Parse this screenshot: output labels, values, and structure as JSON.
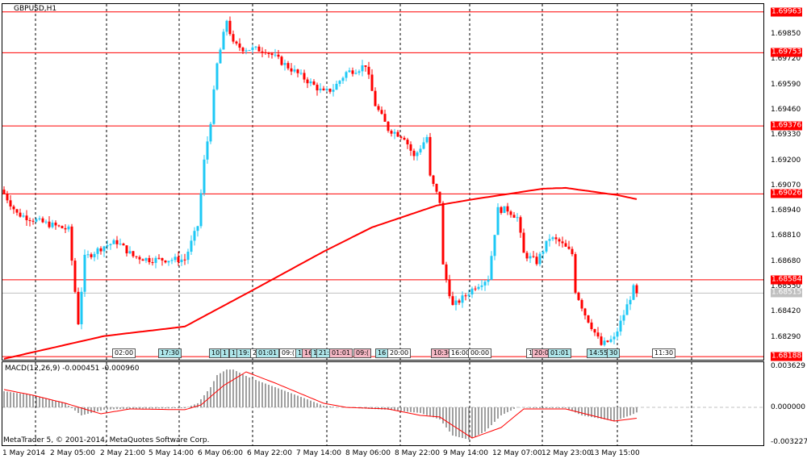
{
  "symbol_label": "GBPUSD,H1",
  "macd_label": "MACD(12,26,9) -0.000451 -0.000960",
  "copyright": "MetaTrader 5, © 2001-2014, MetaQuotes Software Corp.",
  "colors": {
    "bull": "#1ec8f5",
    "bear": "#ff0000",
    "ma": "#ff0000",
    "level": "#ff0000",
    "grid": "#000000",
    "hist": "#808080"
  },
  "price_axis": [
    "1.69850",
    "1.69720",
    "1.69590",
    "1.69460",
    "1.69330",
    "1.69200",
    "1.69070",
    "1.68940",
    "1.68810",
    "1.68680",
    "1.68550",
    "1.68420",
    "1.68290"
  ],
  "level_tags": [
    "1.69963",
    "1.69753",
    "1.69376",
    "1.69026",
    "1.68584",
    "1.68188"
  ],
  "bid_tag": "1.68515",
  "macd_axis": [
    "0.003629",
    "0.000000",
    "-0.003227"
  ],
  "time_axis": [
    "1 May 2014",
    "2 May 05:00",
    "2 May 21:00",
    "5 May 14:00",
    "6 May 06:00",
    "6 May 22:00",
    "7 May 14:00",
    "8 May 06:00",
    "8 May 22:00",
    "9 May 14:00",
    "12 May 07:00",
    "12 May 23:00",
    "13 May 15:00"
  ],
  "events": [
    {
      "t": "02:00",
      "c": "white"
    },
    {
      "t": "17:30",
      "c": "cyan"
    },
    {
      "t": "10:",
      "c": "cyan"
    },
    {
      "t": "1",
      "c": "cyan"
    },
    {
      "t": "1",
      "c": "cyan"
    },
    {
      "t": "19:",
      "c": "cyan"
    },
    {
      "t": "2",
      "c": "white"
    },
    {
      "t": "01:01",
      "c": "cyan"
    },
    {
      "t": "09:(",
      "c": "white"
    },
    {
      "t": "1",
      "c": "cyan"
    },
    {
      "t": "16",
      "c": "pink"
    },
    {
      "t": "1",
      "c": "cyan"
    },
    {
      "t": "21:",
      "c": "cyan"
    },
    {
      "t": "01:01",
      "c": "pink"
    },
    {
      "t": "09:(",
      "c": "pink"
    },
    {
      "t": "16",
      "c": "cyan"
    },
    {
      "t": "20:00",
      "c": "white"
    },
    {
      "t": "10:30",
      "c": "pink"
    },
    {
      "t": "16:00",
      "c": "white"
    },
    {
      "t": "00:00",
      "c": "white"
    },
    {
      "t": "1",
      "c": "white"
    },
    {
      "t": "20:0",
      "c": "pink"
    },
    {
      "t": "01:01",
      "c": "cyan"
    },
    {
      "t": "14:55",
      "c": "cyan"
    },
    {
      "t": "30",
      "c": "cyan"
    },
    {
      "t": "11:30",
      "c": "white"
    }
  ],
  "chart_data": {
    "type": "candlestick",
    "symbol": "GBPUSD",
    "timeframe": "H1",
    "ylim": [
      1.6818,
      1.6999
    ],
    "levels": [
      1.69963,
      1.69753,
      1.69376,
      1.69026,
      1.68584,
      1.68188
    ],
    "bid": 1.68515,
    "bars": 197,
    "close_keypoints": [
      [
        0,
        1.69028
      ],
      [
        4,
        1.68924
      ],
      [
        11,
        1.68883
      ],
      [
        20,
        1.68842
      ],
      [
        23,
        1.68364
      ],
      [
        25,
        1.68696
      ],
      [
        31,
        1.68758
      ],
      [
        35,
        1.68779
      ],
      [
        40,
        1.68705
      ],
      [
        45,
        1.68688
      ],
      [
        56,
        1.68688
      ],
      [
        60,
        1.68862
      ],
      [
        62,
        1.69194
      ],
      [
        64,
        1.69402
      ],
      [
        66,
        1.69692
      ],
      [
        69,
        1.69921
      ],
      [
        71,
        1.69796
      ],
      [
        74,
        1.69775
      ],
      [
        81,
        1.69767
      ],
      [
        87,
        1.69692
      ],
      [
        94,
        1.69609
      ],
      [
        99,
        1.69547
      ],
      [
        102,
        1.69568
      ],
      [
        106,
        1.69651
      ],
      [
        110,
        1.69672
      ],
      [
        112,
        1.69692
      ],
      [
        115,
        1.69485
      ],
      [
        119,
        1.6936
      ],
      [
        124,
        1.69319
      ],
      [
        127,
        1.69215
      ],
      [
        131,
        1.69319
      ],
      [
        132,
        1.69111
      ],
      [
        135,
        1.68987
      ],
      [
        136,
        1.68655
      ],
      [
        139,
        1.68447
      ],
      [
        142,
        1.68489
      ],
      [
        146,
        1.68551
      ],
      [
        150,
        1.68593
      ],
      [
        153,
        1.68945
      ],
      [
        156,
        1.68945
      ],
      [
        159,
        1.68904
      ],
      [
        161,
        1.68717
      ],
      [
        165,
        1.68676
      ],
      [
        169,
        1.688
      ],
      [
        172,
        1.68779
      ],
      [
        176,
        1.68717
      ],
      [
        177,
        1.6853
      ],
      [
        180,
        1.68406
      ],
      [
        182,
        1.68344
      ],
      [
        185,
        1.68248
      ],
      [
        189,
        1.68281
      ],
      [
        192,
        1.68406
      ],
      [
        195,
        1.68539
      ],
      [
        196,
        1.68515
      ]
    ],
    "ma_keypoints": [
      [
        0,
        1.68177
      ],
      [
        31,
        1.68294
      ],
      [
        56,
        1.68343
      ],
      [
        77,
        1.6853
      ],
      [
        99,
        1.68729
      ],
      [
        114,
        1.68854
      ],
      [
        134,
        1.68966
      ],
      [
        144,
        1.68995
      ],
      [
        167,
        1.69053
      ],
      [
        174,
        1.69057
      ],
      [
        190,
        1.6902
      ],
      [
        196,
        1.68999
      ]
    ],
    "macd": {
      "params": [
        12,
        26,
        9
      ],
      "ylim": [
        -0.003227,
        0.003629
      ],
      "hist_keypoints": [
        [
          0,
          0.00142
        ],
        [
          9,
          0.00107
        ],
        [
          19,
          0.00036
        ],
        [
          24,
          -0.00071
        ],
        [
          31,
          -0.00021
        ],
        [
          36,
          -0.00014
        ],
        [
          56,
          -7e-05
        ],
        [
          60,
          0.00036
        ],
        [
          64,
          0.00178
        ],
        [
          66,
          0.00285
        ],
        [
          69,
          0.00334
        ],
        [
          71,
          0.00334
        ],
        [
          76,
          0.00263
        ],
        [
          84,
          0.00178
        ],
        [
          94,
          0.00071
        ],
        [
          99,
          0.00014
        ],
        [
          104,
          0
        ],
        [
          119,
          -0.00021
        ],
        [
          129,
          -0.0005
        ],
        [
          135,
          -0.00107
        ],
        [
          139,
          -0.00249
        ],
        [
          144,
          -0.00285
        ],
        [
          149,
          -0.00214
        ],
        [
          154,
          -0.00071
        ],
        [
          159,
          0
        ],
        [
          164,
          -7e-05
        ],
        [
          174,
          -7e-05
        ],
        [
          179,
          -0.00071
        ],
        [
          189,
          -0.00121
        ],
        [
          194,
          -0.00071
        ],
        [
          196,
          -0.00045
        ]
      ],
      "signal_keypoints": [
        [
          0,
          0.00157
        ],
        [
          9,
          0.00107
        ],
        [
          19,
          0.00036
        ],
        [
          30,
          -0.00057
        ],
        [
          39,
          -0.00014
        ],
        [
          56,
          -0.00021
        ],
        [
          61,
          0.00021
        ],
        [
          68,
          0.00192
        ],
        [
          75,
          0.00313
        ],
        [
          84,
          0.00214
        ],
        [
          99,
          0.00036
        ],
        [
          106,
          0
        ],
        [
          119,
          -0.00014
        ],
        [
          129,
          -0.00071
        ],
        [
          135,
          -0.00085
        ],
        [
          145,
          -0.00271
        ],
        [
          154,
          -0.00178
        ],
        [
          161,
          -0.00014
        ],
        [
          174,
          -0.00014
        ],
        [
          179,
          -0.0005
        ],
        [
          189,
          -0.00121
        ],
        [
          196,
          -0.00096
        ]
      ]
    }
  }
}
